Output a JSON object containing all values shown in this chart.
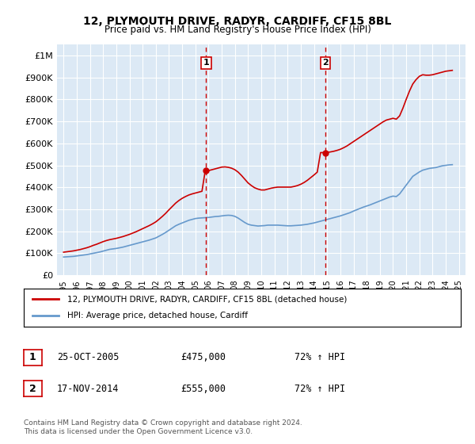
{
  "title": "12, PLYMOUTH DRIVE, RADYR, CARDIFF, CF15 8BL",
  "subtitle": "Price paid vs. HM Land Registry's House Price Index (HPI)",
  "bg_color": "#dce9f5",
  "plot_bg_color": "#dce9f5",
  "red_line_color": "#cc0000",
  "blue_line_color": "#6699cc",
  "vline_color": "#cc0000",
  "sale1_x": 2005.82,
  "sale2_x": 2014.88,
  "sale1_price": 475000,
  "sale2_price": 555000,
  "legend_label_red": "12, PLYMOUTH DRIVE, RADYR, CARDIFF, CF15 8BL (detached house)",
  "legend_label_blue": "HPI: Average price, detached house, Cardiff",
  "table_row1": [
    "1",
    "25-OCT-2005",
    "£475,000",
    "72% ↑ HPI"
  ],
  "table_row2": [
    "2",
    "17-NOV-2014",
    "£555,000",
    "72% ↑ HPI"
  ],
  "footer": "Contains HM Land Registry data © Crown copyright and database right 2024.\nThis data is licensed under the Open Government Licence v3.0.",
  "ylim": [
    0,
    1050000
  ],
  "yticks": [
    0,
    100000,
    200000,
    300000,
    400000,
    500000,
    600000,
    700000,
    800000,
    900000,
    1000000
  ],
  "ytick_labels": [
    "£0",
    "£100K",
    "£200K",
    "£300K",
    "£400K",
    "£500K",
    "£600K",
    "£700K",
    "£800K",
    "£900K",
    "£1M"
  ],
  "hpi_years": [
    1995,
    1995.25,
    1995.5,
    1995.75,
    1996,
    1996.25,
    1996.5,
    1996.75,
    1997,
    1997.25,
    1997.5,
    1997.75,
    1998,
    1998.25,
    1998.5,
    1998.75,
    1999,
    1999.25,
    1999.5,
    1999.75,
    2000,
    2000.25,
    2000.5,
    2000.75,
    2001,
    2001.25,
    2001.5,
    2001.75,
    2002,
    2002.25,
    2002.5,
    2002.75,
    2003,
    2003.25,
    2003.5,
    2003.75,
    2004,
    2004.25,
    2004.5,
    2004.75,
    2005,
    2005.25,
    2005.5,
    2005.75,
    2006,
    2006.25,
    2006.5,
    2006.75,
    2007,
    2007.25,
    2007.5,
    2007.75,
    2008,
    2008.25,
    2008.5,
    2008.75,
    2009,
    2009.25,
    2009.5,
    2009.75,
    2010,
    2010.25,
    2010.5,
    2010.75,
    2011,
    2011.25,
    2011.5,
    2011.75,
    2012,
    2012.25,
    2012.5,
    2012.75,
    2013,
    2013.25,
    2013.5,
    2013.75,
    2014,
    2014.25,
    2014.5,
    2014.75,
    2015,
    2015.25,
    2015.5,
    2015.75,
    2016,
    2016.25,
    2016.5,
    2016.75,
    2017,
    2017.25,
    2017.5,
    2017.75,
    2018,
    2018.25,
    2018.5,
    2018.75,
    2019,
    2019.25,
    2019.5,
    2019.75,
    2020,
    2020.25,
    2020.5,
    2020.75,
    2021,
    2021.25,
    2021.5,
    2021.75,
    2022,
    2022.25,
    2022.5,
    2022.75,
    2023,
    2023.25,
    2023.5,
    2023.75,
    2024,
    2024.25,
    2024.5
  ],
  "hpi_values": [
    83000,
    84000,
    85000,
    86000,
    88000,
    90000,
    92000,
    94000,
    97000,
    100000,
    103000,
    106000,
    110000,
    114000,
    118000,
    120000,
    122000,
    125000,
    128000,
    132000,
    136000,
    140000,
    144000,
    148000,
    152000,
    156000,
    160000,
    165000,
    170000,
    178000,
    186000,
    195000,
    205000,
    215000,
    225000,
    232000,
    238000,
    244000,
    250000,
    254000,
    258000,
    260000,
    261000,
    262000,
    263000,
    265000,
    267000,
    268000,
    270000,
    272000,
    273000,
    272000,
    268000,
    260000,
    250000,
    240000,
    232000,
    228000,
    226000,
    224000,
    225000,
    226000,
    228000,
    228000,
    228000,
    228000,
    227000,
    226000,
    225000,
    225000,
    226000,
    227000,
    228000,
    230000,
    232000,
    235000,
    238000,
    242000,
    246000,
    250000,
    254000,
    258000,
    262000,
    266000,
    270000,
    275000,
    280000,
    285000,
    292000,
    298000,
    304000,
    310000,
    315000,
    320000,
    326000,
    332000,
    338000,
    344000,
    350000,
    356000,
    360000,
    358000,
    370000,
    390000,
    410000,
    430000,
    450000,
    460000,
    470000,
    478000,
    482000,
    486000,
    488000,
    490000,
    494000,
    498000,
    500000,
    502000,
    503000
  ],
  "price_years": [
    1995,
    1995.25,
    1995.5,
    1995.75,
    1996,
    1996.25,
    1996.5,
    1996.75,
    1997,
    1997.25,
    1997.5,
    1997.75,
    1998,
    1998.25,
    1998.5,
    1998.75,
    1999,
    1999.25,
    1999.5,
    1999.75,
    2000,
    2000.25,
    2000.5,
    2000.75,
    2001,
    2001.25,
    2001.5,
    2001.75,
    2002,
    2002.25,
    2002.5,
    2002.75,
    2003,
    2003.25,
    2003.5,
    2003.75,
    2004,
    2004.25,
    2004.5,
    2004.75,
    2005,
    2005.25,
    2005.5,
    2005.75,
    2006,
    2006.25,
    2006.5,
    2006.75,
    2007,
    2007.25,
    2007.5,
    2007.75,
    2008,
    2008.25,
    2008.5,
    2008.75,
    2009,
    2009.25,
    2009.5,
    2009.75,
    2010,
    2010.25,
    2010.5,
    2010.75,
    2011,
    2011.25,
    2011.5,
    2011.75,
    2012,
    2012.25,
    2012.5,
    2012.75,
    2013,
    2013.25,
    2013.5,
    2013.75,
    2014,
    2014.25,
    2014.5,
    2014.75,
    2015,
    2015.25,
    2015.5,
    2015.75,
    2016,
    2016.25,
    2016.5,
    2016.75,
    2017,
    2017.25,
    2017.5,
    2017.75,
    2018,
    2018.25,
    2018.5,
    2018.75,
    2019,
    2019.25,
    2019.5,
    2019.75,
    2020,
    2020.25,
    2020.5,
    2020.75,
    2021,
    2021.25,
    2021.5,
    2021.75,
    2022,
    2022.25,
    2022.5,
    2022.75,
    2023,
    2023.25,
    2023.5,
    2023.75,
    2024,
    2024.25,
    2024.5
  ],
  "price_values": [
    105000,
    107000,
    109000,
    111000,
    114000,
    117000,
    121000,
    125000,
    130000,
    136000,
    141000,
    147000,
    153000,
    158000,
    162000,
    165000,
    168000,
    172000,
    176000,
    181000,
    186000,
    192000,
    198000,
    205000,
    212000,
    219000,
    226000,
    234000,
    243000,
    255000,
    268000,
    282000,
    298000,
    313000,
    328000,
    340000,
    350000,
    358000,
    365000,
    370000,
    374000,
    378000,
    382000,
    476000,
    476000,
    480000,
    484000,
    488000,
    492000,
    493000,
    491000,
    487000,
    480000,
    469000,
    454000,
    437000,
    420000,
    408000,
    398000,
    392000,
    388000,
    388000,
    392000,
    396000,
    399000,
    401000,
    401000,
    401000,
    401000,
    401000,
    404000,
    408000,
    414000,
    422000,
    432000,
    444000,
    456000,
    469000,
    558000,
    558000,
    559000,
    561000,
    564000,
    568000,
    573000,
    580000,
    588000,
    598000,
    608000,
    618000,
    628000,
    638000,
    648000,
    658000,
    668000,
    678000,
    688000,
    698000,
    706000,
    710000,
    714000,
    710000,
    725000,
    760000,
    800000,
    838000,
    870000,
    890000,
    905000,
    912000,
    910000,
    910000,
    912000,
    916000,
    920000,
    924000,
    928000,
    930000,
    932000
  ]
}
